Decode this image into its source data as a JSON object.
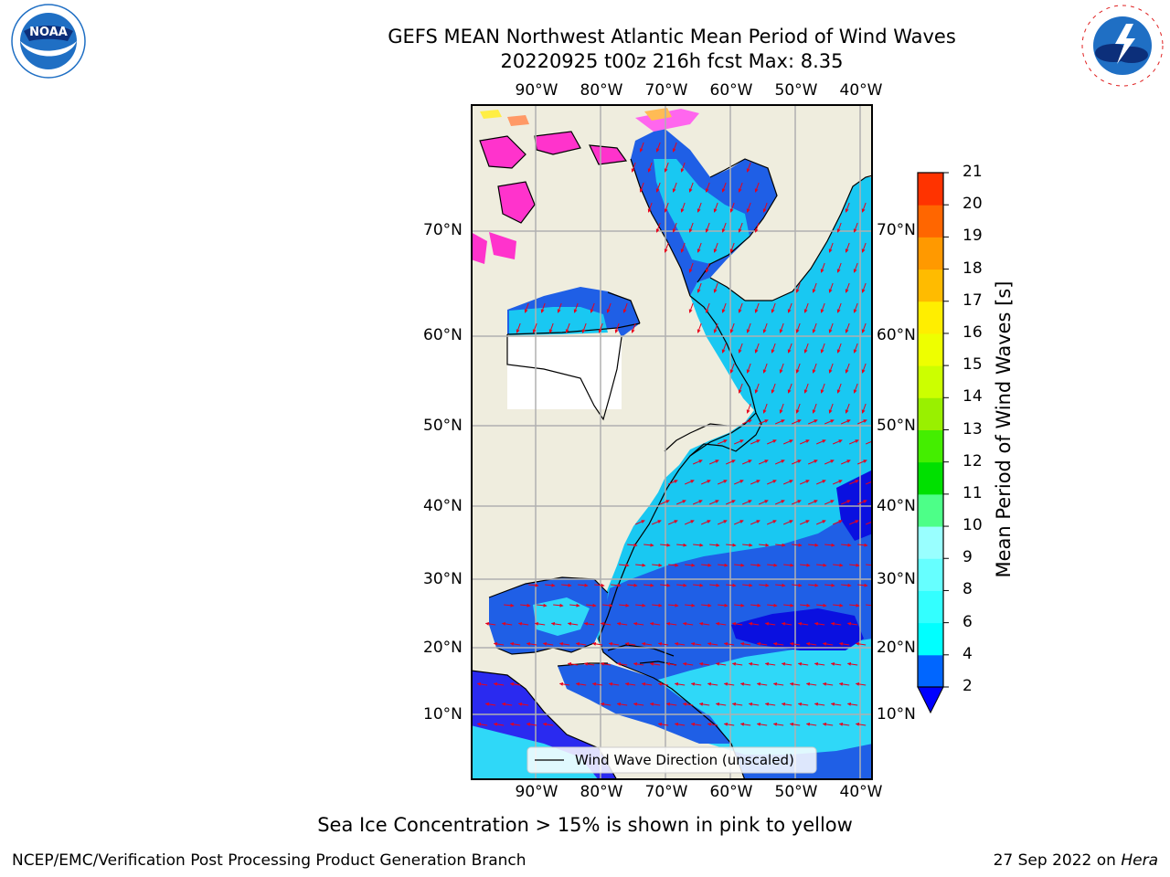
{
  "header": {
    "title_line1": "GEFS MEAN Northwest Atlantic Mean Period of Wind Waves",
    "title_line2": "20220925 t00z 216h fcst   Max: 8.35"
  },
  "logos": {
    "left": {
      "name": "NOAA",
      "ring_text": "NATIONAL OCEANIC AND ATMOSPHERIC ADMINISTRATION · U.S. DEPARTMENT OF COMMERCE",
      "color": "#1f6fc4"
    },
    "right": {
      "name": "NATIONAL WEATHER SERVICE",
      "color": "#1f6fc4",
      "accent": "#e02020"
    }
  },
  "map": {
    "projection": "lat-lon",
    "lon_ticks": [
      "90°W",
      "80°W",
      "70°W",
      "60°W",
      "50°W",
      "40°W"
    ],
    "lon_values": [
      -90,
      -80,
      -70,
      -60,
      -50,
      -40
    ],
    "lat_ticks": [
      "70°N",
      "60°N",
      "50°N",
      "40°N",
      "30°N",
      "20°N",
      "10°N"
    ],
    "lat_values": [
      70,
      60,
      50,
      40,
      30,
      20,
      10
    ],
    "land_color": "#efedde",
    "grid": true,
    "legend": {
      "label": "Wind Wave Direction (unscaled)",
      "placement": "bottom-center"
    }
  },
  "colorbar": {
    "label": "Mean Period of Wind Waves [s]",
    "tick_labels": [
      "2",
      "4",
      "6",
      "8",
      "9",
      "10",
      "11",
      "12",
      "13",
      "14",
      "15",
      "16",
      "17",
      "18",
      "19",
      "20",
      "21"
    ],
    "colors": [
      "#0066ff",
      "#00ffff",
      "#33ffff",
      "#66ffff",
      "#99ffff",
      "#4dff88",
      "#00e000",
      "#44ee00",
      "#99f000",
      "#ccff00",
      "#eeff00",
      "#ffee00",
      "#ffbb00",
      "#ff9900",
      "#ff6600",
      "#ff3300",
      "#ff0000"
    ],
    "under_color": "#0000ff"
  },
  "notes": {
    "sea_ice": "Sea Ice Concentration > 15% is shown in pink to yellow"
  },
  "footer": {
    "left": "NCEP/EMC/Verification Post Processing Product Generation Branch",
    "right_date": "27 Sep 2022 on ",
    "right_host": "Hera"
  }
}
